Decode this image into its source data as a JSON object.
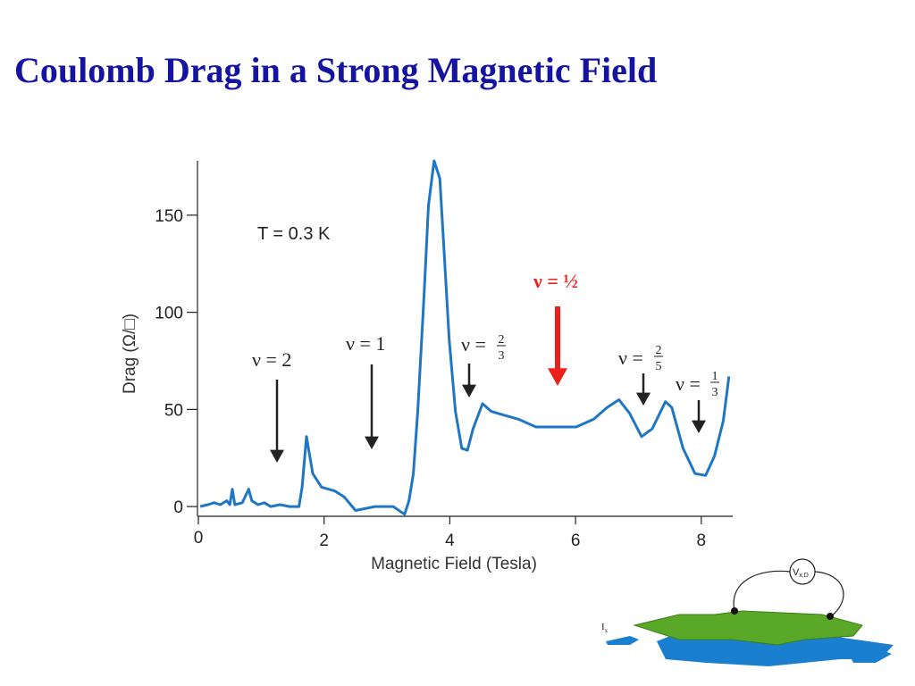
{
  "chart_data": {
    "type": "line",
    "title": "Coulomb Drag in a Strong Magnetic Field",
    "x_label": "Magnetic Field (Tesla)",
    "y_label": "Drag (Ω/□)",
    "color": "#1f77c4",
    "xlim": [
      0,
      8.5
    ],
    "ylim": [
      -5,
      178
    ],
    "xticks": [
      0,
      2,
      4,
      6,
      8
    ],
    "yticks": [
      0,
      50,
      100,
      150
    ],
    "x": [
      0.03,
      0.15,
      0.25,
      0.35,
      0.45,
      0.5,
      0.54,
      0.58,
      0.7,
      0.8,
      0.85,
      0.95,
      1.05,
      1.15,
      1.3,
      1.45,
      1.6,
      1.65,
      1.72,
      1.82,
      1.96,
      2.17,
      2.32,
      2.5,
      2.81,
      3.1,
      3.28,
      3.35,
      3.42,
      3.49,
      3.59,
      3.66,
      3.75,
      3.84,
      3.9,
      3.99,
      4.09,
      4.19,
      4.28,
      4.37,
      4.52,
      4.66,
      4.87,
      5.09,
      5.37,
      5.65,
      6.01,
      6.29,
      6.5,
      6.69,
      6.86,
      7.05,
      7.22,
      7.43,
      7.53,
      7.71,
      7.9,
      8.07,
      8.21,
      8.35,
      8.44
    ],
    "values": [
      0,
      1,
      2,
      1,
      3,
      1,
      9,
      1,
      2,
      9,
      3,
      1,
      2,
      0,
      1,
      0,
      0,
      10,
      36,
      17,
      10,
      8,
      5,
      -2,
      0,
      0,
      -4,
      3,
      17,
      49,
      109,
      155,
      178,
      169,
      136,
      86,
      49,
      30,
      29,
      40,
      53,
      49,
      47,
      45,
      41,
      41,
      41,
      45,
      51,
      55,
      48,
      36,
      40,
      54,
      51,
      30,
      17,
      16,
      26,
      44,
      67
    ],
    "annotations": [
      {
        "text": "T = 0.3 K"
      },
      {
        "text": "ν = 2"
      },
      {
        "text": "ν = 1"
      },
      {
        "text": "ν =",
        "numerator": "2",
        "denominator": "3"
      },
      {
        "text": "ν = ½",
        "color": "#e8201e"
      },
      {
        "text": "ν =",
        "numerator": "2",
        "denominator": "5"
      },
      {
        "text": "ν =",
        "numerator": "1",
        "denominator": "3"
      }
    ]
  },
  "diagram": {
    "voltage_label": "V",
    "voltage_subscript": "x,D",
    "current_label": "I",
    "current_subscript": "x"
  }
}
